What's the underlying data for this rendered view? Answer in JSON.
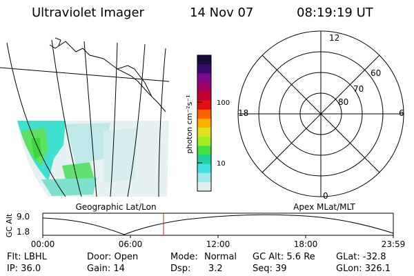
{
  "header": {
    "title": "Ultraviolet Imager",
    "date": "14 Nov 07",
    "time": "08:19:19 UT"
  },
  "geo_panel": {
    "label": "Geographic Lat/Lon"
  },
  "colorbar": {
    "unit_label": "photon cm⁻²s⁻¹",
    "ticks": [
      "100",
      "10"
    ],
    "colors": [
      "#1a0a3a",
      "#3a0a6a",
      "#7a0a8a",
      "#a00060",
      "#c00030",
      "#e01010",
      "#ff6000",
      "#ffb000",
      "#e0e020",
      "#a0f020",
      "#40e040",
      "#20d0a0",
      "#40e0e0",
      "#a0e8e8",
      "#e0f0f0"
    ]
  },
  "polar_plot": {
    "label": "Apex MLat/MLT",
    "mlt_labels": {
      "top": "12",
      "left": "18",
      "right": "6",
      "bottom": "0"
    },
    "lat_labels": [
      "60",
      "70",
      "80"
    ]
  },
  "altitude_plot": {
    "ylabel": "GC Alt",
    "yticks": [
      "9.0",
      "1.8"
    ],
    "xticks": [
      "00:00",
      "06:00",
      "12:00",
      "18:00",
      "23:59"
    ],
    "marker_time": "08:19"
  },
  "info": {
    "flt": "Flt: LBHL",
    "door": "Door: Open",
    "mode": "Mode:",
    "mode_val": "Normal",
    "gc_alt": "GC Alt: 5.6 Re",
    "glat": "GLat: -32.8",
    "ip": "IP: 36.0",
    "gain": "Gain: 14",
    "dsp": "Dsp:",
    "dsp_val": "3.2",
    "seq": "Seq: 39",
    "glon": "GLon: 326.1"
  },
  "colors": {
    "marker": "#cc2020",
    "grid": "#000000"
  }
}
